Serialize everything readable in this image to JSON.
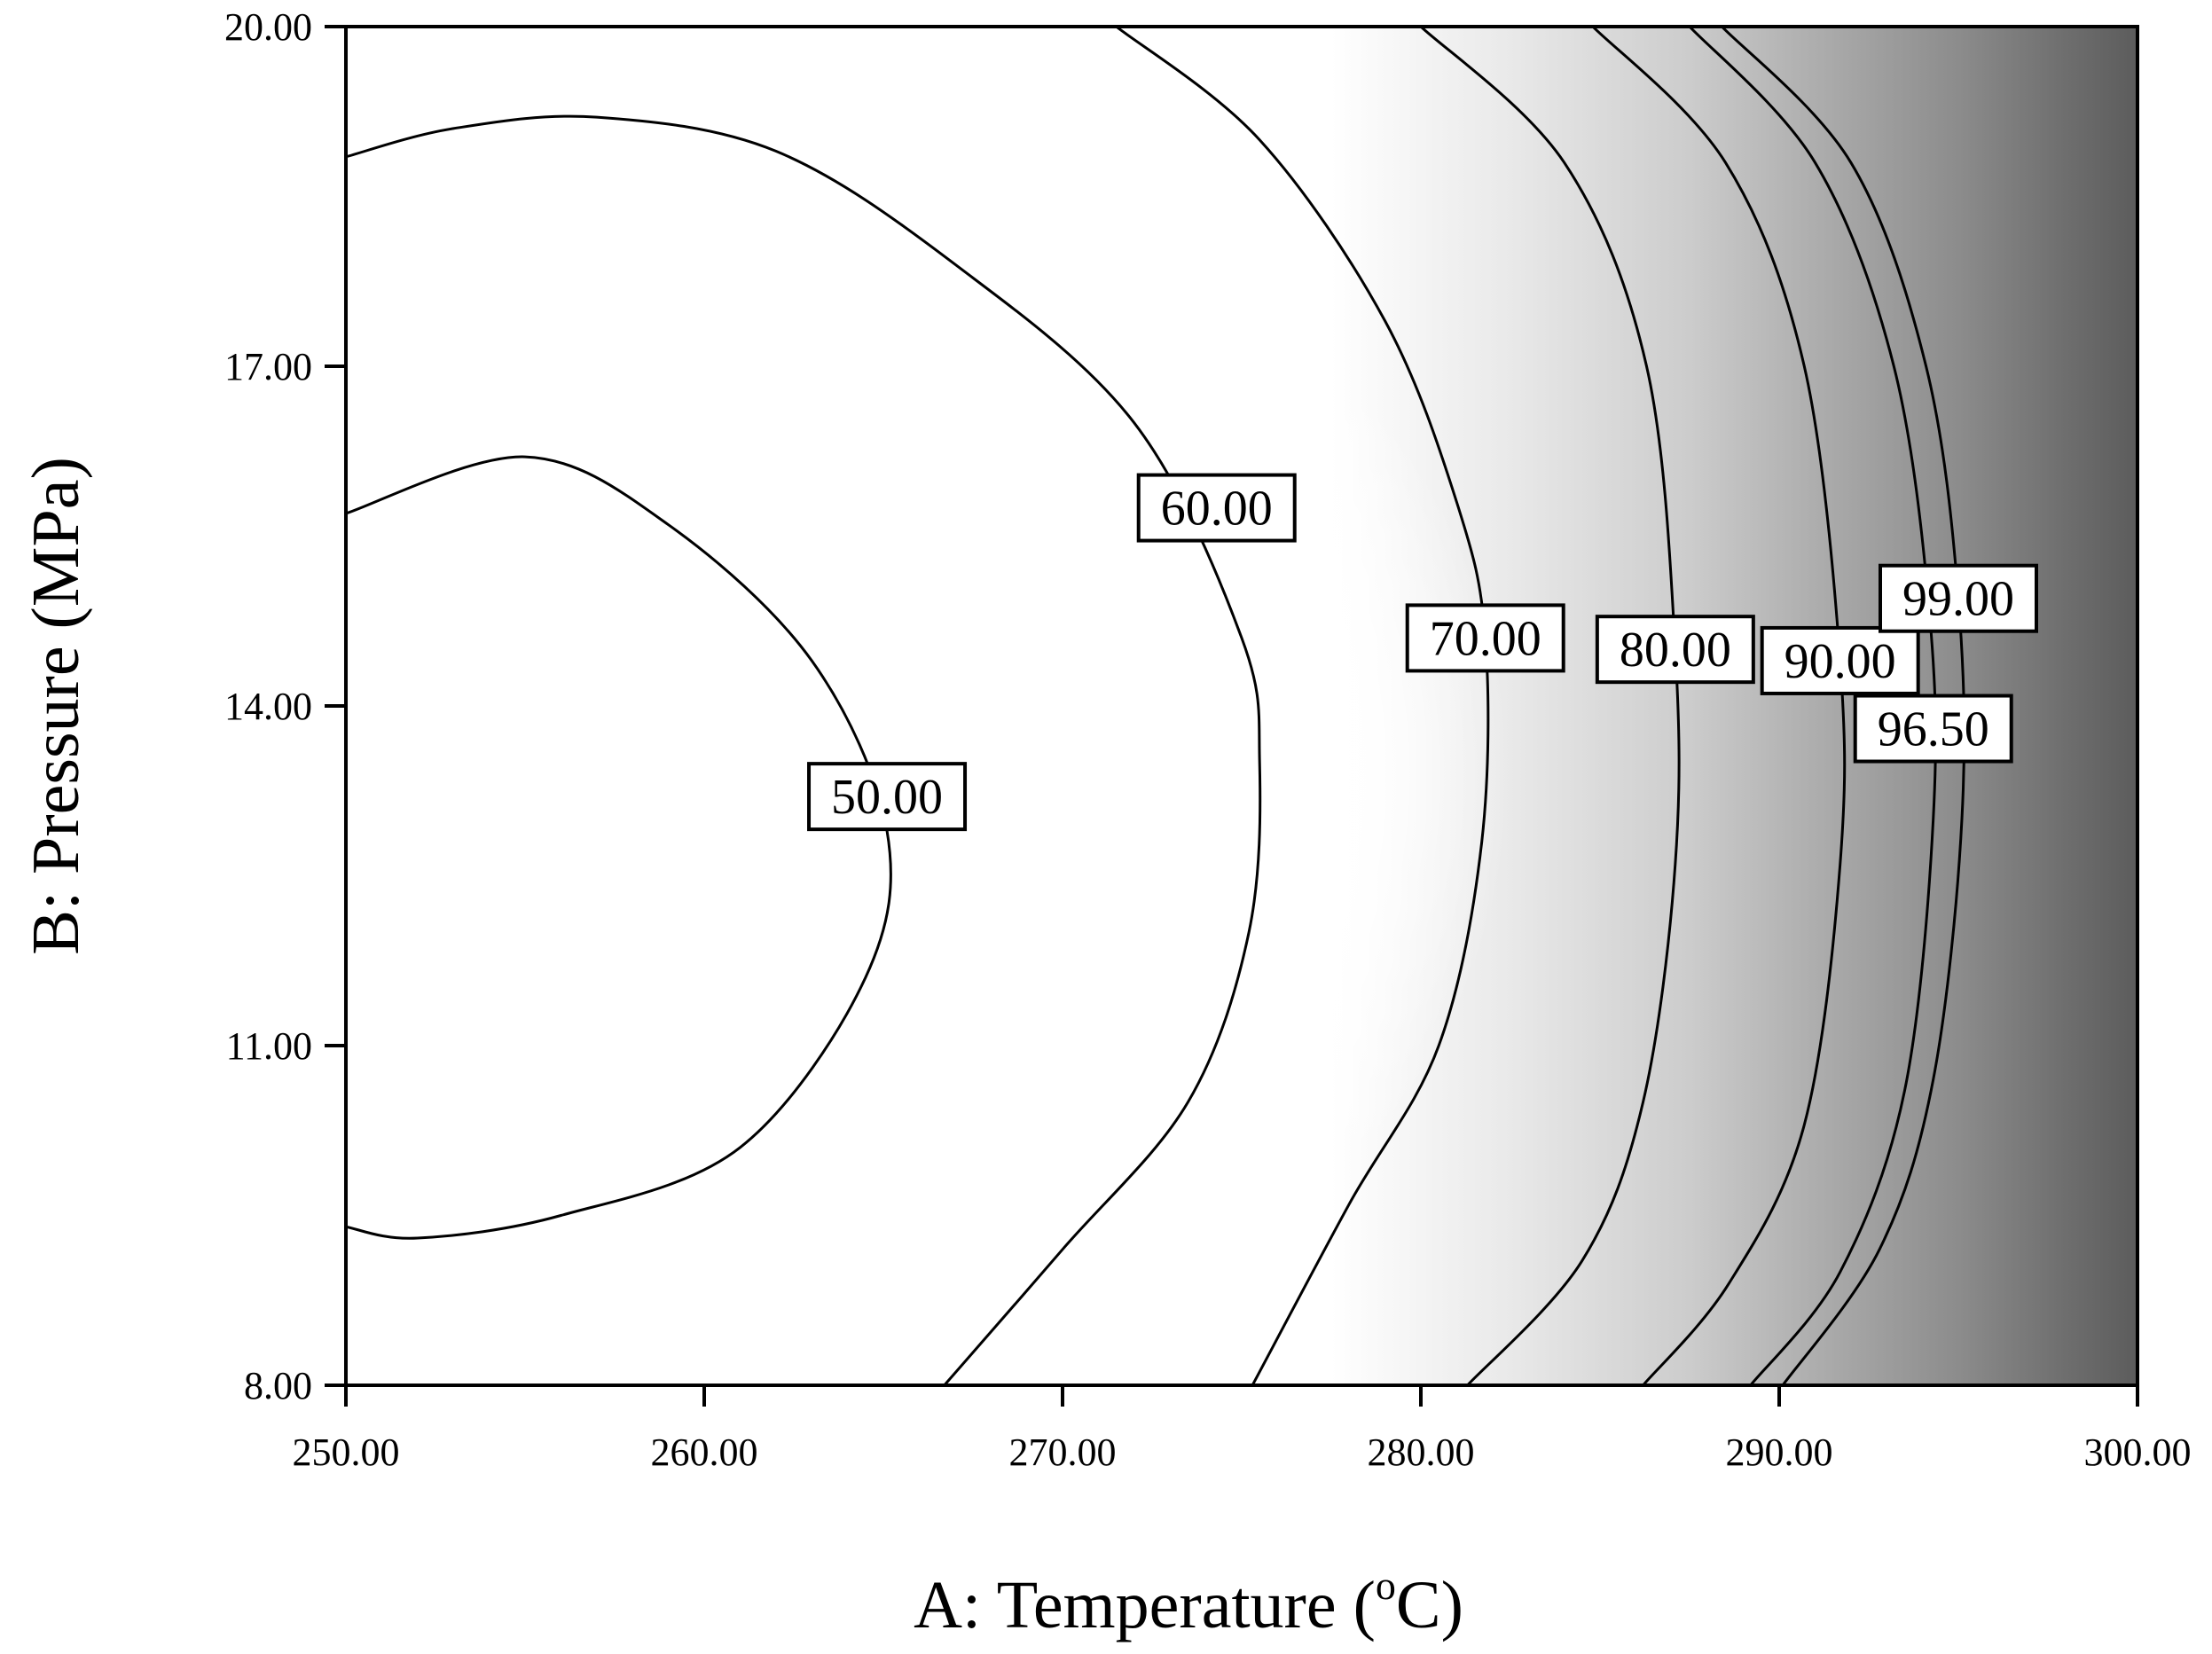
{
  "chart_data": {
    "type": "contour",
    "title": "",
    "xlabel": "A: Temperature (",
    "xlabel_sup": "o",
    "xlabel_suffix": "C)",
    "ylabel": "B: Pressure (MPa)",
    "xlim": [
      250,
      300
    ],
    "ylim": [
      8,
      20
    ],
    "x_ticks": [
      "250.00",
      "260.00",
      "270.00",
      "280.00",
      "290.00",
      "300.00"
    ],
    "x_tick_values": [
      250,
      260,
      270,
      280,
      290,
      300
    ],
    "y_ticks": [
      "8.00",
      "11.00",
      "14.00",
      "17.00",
      "20.00"
    ],
    "y_tick_values": [
      8,
      11,
      14,
      17,
      20
    ],
    "grid": false,
    "fill": "grayscale, white at low values to dark gray at high temperature",
    "contours": [
      {
        "level": 50,
        "label": "50.00",
        "label_at": [
          265.1,
          13.2
        ],
        "points": [
          [
            250,
            15.7
          ],
          [
            255,
            16.2
          ],
          [
            259,
            15.6
          ],
          [
            263,
            14.4
          ],
          [
            265.1,
            12.9
          ],
          [
            264.5,
            11.6
          ],
          [
            261,
            10.1
          ],
          [
            256,
            9.5
          ],
          [
            252,
            9.3
          ],
          [
            250,
            9.4
          ]
        ]
      },
      {
        "level": 60,
        "label": "60.00",
        "label_at": [
          274.3,
          15.75
        ],
        "points": [
          [
            250,
            18.85
          ],
          [
            253,
            19.1
          ],
          [
            257,
            19.2
          ],
          [
            262,
            18.9
          ],
          [
            267,
            17.9
          ],
          [
            272,
            16.5
          ],
          [
            275,
            14.6
          ],
          [
            275.5,
            13.5
          ],
          [
            275.2,
            12.0
          ],
          [
            273.5,
            10.5
          ],
          [
            270,
            9.2
          ],
          [
            266.7,
            8
          ]
        ]
      },
      {
        "level": 70,
        "label": "70.00",
        "label_at": [
          281.8,
          14.6
        ],
        "points": [
          [
            271.5,
            20
          ],
          [
            275.5,
            19.0
          ],
          [
            279,
            17.4
          ],
          [
            281,
            15.8
          ],
          [
            281.8,
            14.6
          ],
          [
            281.7,
            12.8
          ],
          [
            280.5,
            11.0
          ],
          [
            278,
            9.6
          ],
          [
            275.3,
            8
          ]
        ]
      },
      {
        "level": 80,
        "label": "80.00",
        "label_at": [
          287.1,
          14.5
        ],
        "points": [
          [
            280,
            20
          ],
          [
            284,
            18.8
          ],
          [
            286.3,
            17.0
          ],
          [
            287.1,
            14.5
          ],
          [
            287.1,
            12.6
          ],
          [
            286.2,
            10.5
          ],
          [
            284.5,
            9.1
          ],
          [
            281.3,
            8
          ]
        ]
      },
      {
        "level": 90,
        "label": "90.00",
        "label_at": [
          291.7,
          14.4
        ],
        "points": [
          [
            284.8,
            20
          ],
          [
            288.5,
            18.8
          ],
          [
            290.7,
            17.0
          ],
          [
            291.7,
            14.4
          ],
          [
            291.7,
            12.6
          ],
          [
            290.7,
            10.3
          ],
          [
            288.6,
            8.9
          ],
          [
            286.2,
            8
          ]
        ]
      },
      {
        "level": 96.5,
        "label": "96.50",
        "label_at": [
          294.3,
          13.8
        ],
        "points": [
          [
            287.5,
            20
          ],
          [
            291,
            18.8
          ],
          [
            293.2,
            17.0
          ],
          [
            294.2,
            14.8
          ],
          [
            294.3,
            13.0
          ],
          [
            293.5,
            10.6
          ],
          [
            291.7,
            9.0
          ],
          [
            289.2,
            8
          ]
        ]
      },
      {
        "level": 99,
        "label": "99.00",
        "label_at": [
          295,
          14.95
        ],
        "points": [
          [
            288.4,
            20
          ],
          [
            292,
            18.8
          ],
          [
            294.1,
            17.0
          ],
          [
            295,
            14.95
          ],
          [
            295.1,
            13.0
          ],
          [
            294.3,
            10.7
          ],
          [
            292.8,
            9.2
          ],
          [
            290.1,
            8
          ]
        ]
      }
    ]
  }
}
